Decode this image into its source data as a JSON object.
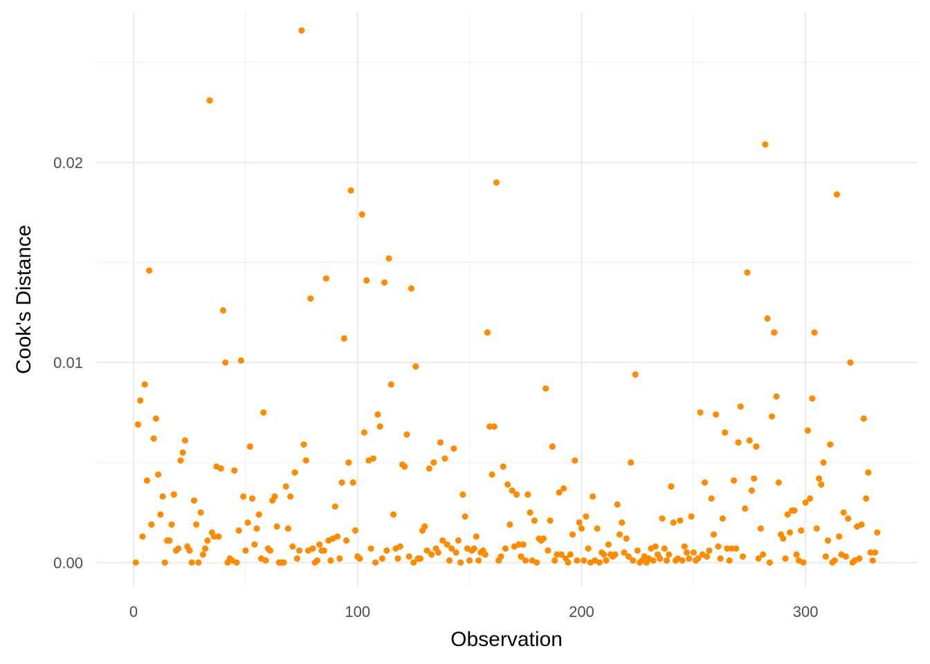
{
  "chart_data": {
    "type": "scatter",
    "title": "",
    "xlabel": "Observation",
    "ylabel": "Cook's Distance",
    "xlim": [
      -17,
      350
    ],
    "ylim": [
      -0.0012,
      0.0275
    ],
    "x_ticks": [
      0,
      100,
      200,
      300
    ],
    "x_tick_labels": [
      "0",
      "100",
      "200",
      "300"
    ],
    "y_ticks": [
      0.0,
      0.01,
      0.02
    ],
    "y_tick_labels": [
      "0.00",
      "0.01",
      "0.02"
    ],
    "grid": true,
    "point_color": "#FF8C00",
    "points": [
      [
        1,
        0.0
      ],
      [
        2,
        0.0069
      ],
      [
        3,
        0.0081
      ],
      [
        4,
        0.0013
      ],
      [
        5,
        0.0089
      ],
      [
        6,
        0.0041
      ],
      [
        7,
        0.0146
      ],
      [
        8,
        0.0019
      ],
      [
        9,
        0.0062
      ],
      [
        10,
        0.0072
      ],
      [
        11,
        0.0044
      ],
      [
        12,
        0.0024
      ],
      [
        13,
        0.0033
      ],
      [
        14,
        0.0
      ],
      [
        15,
        0.0011
      ],
      [
        16,
        0.0011
      ],
      [
        17,
        0.0019
      ],
      [
        18,
        0.0034
      ],
      [
        19,
        0.0006
      ],
      [
        20,
        0.0007
      ],
      [
        21,
        0.0051
      ],
      [
        22,
        0.0055
      ],
      [
        23,
        0.0061
      ],
      [
        24,
        0.0008
      ],
      [
        25,
        0.0006
      ],
      [
        26,
        0.0
      ],
      [
        27,
        0.0031
      ],
      [
        28,
        0.0019
      ],
      [
        29,
        0.0
      ],
      [
        30,
        0.0025
      ],
      [
        31,
        0.0004
      ],
      [
        32,
        0.0007
      ],
      [
        33,
        0.0011
      ],
      [
        34,
        0.0231
      ],
      [
        35,
        0.0015
      ],
      [
        36,
        0.0013
      ],
      [
        37,
        0.0048
      ],
      [
        38,
        0.0013
      ],
      [
        39,
        0.0047
      ],
      [
        40,
        0.0126
      ],
      [
        41,
        0.01
      ],
      [
        42,
        0.0
      ],
      [
        43,
        0.0002
      ],
      [
        44,
        0.0001
      ],
      [
        45,
        0.0046
      ],
      [
        46,
        0.0
      ],
      [
        47,
        0.0016
      ],
      [
        48,
        0.0101
      ],
      [
        49,
        0.0033
      ],
      [
        50,
        0.0006
      ],
      [
        51,
        0.002
      ],
      [
        52,
        0.0058
      ],
      [
        53,
        0.0032
      ],
      [
        54,
        0.0009
      ],
      [
        55,
        0.0017
      ],
      [
        56,
        0.0024
      ],
      [
        57,
        0.0002
      ],
      [
        58,
        0.0075
      ],
      [
        59,
        0.0001
      ],
      [
        60,
        0.0007
      ],
      [
        61,
        0.0006
      ],
      [
        62,
        0.0031
      ],
      [
        63,
        0.0033
      ],
      [
        64,
        0.0018
      ],
      [
        65,
        0.0
      ],
      [
        66,
        0.0
      ],
      [
        67,
        0.0
      ],
      [
        68,
        0.0038
      ],
      [
        69,
        0.0017
      ],
      [
        70,
        0.0033
      ],
      [
        71,
        0.0008
      ],
      [
        72,
        0.0045
      ],
      [
        73,
        0.0002
      ],
      [
        74,
        0.0006
      ],
      [
        75,
        0.0266
      ],
      [
        76,
        0.0059
      ],
      [
        77,
        0.0051
      ],
      [
        78,
        0.0006
      ],
      [
        79,
        0.0132
      ],
      [
        80,
        0.0007
      ],
      [
        81,
        0.0
      ],
      [
        82,
        0.0001
      ],
      [
        83,
        0.0009
      ],
      [
        84,
        0.0006
      ],
      [
        85,
        0.0006
      ],
      [
        86,
        0.0142
      ],
      [
        87,
        0.0011
      ],
      [
        88,
        0.0001
      ],
      [
        89,
        0.0012
      ],
      [
        90,
        0.0028
      ],
      [
        91,
        0.0013
      ],
      [
        92,
        0.0002
      ],
      [
        93,
        0.004
      ],
      [
        94,
        0.0112
      ],
      [
        95,
        0.0011
      ],
      [
        96,
        0.005
      ],
      [
        97,
        0.0186
      ],
      [
        98,
        0.004
      ],
      [
        99,
        0.0016
      ],
      [
        100,
        0.0003
      ],
      [
        101,
        0.0002
      ],
      [
        102,
        0.0174
      ],
      [
        103,
        0.0065
      ],
      [
        104,
        0.0141
      ],
      [
        105,
        0.0051
      ],
      [
        106,
        0.0007
      ],
      [
        107,
        0.0052
      ],
      [
        108,
        0.0
      ],
      [
        109,
        0.0074
      ],
      [
        110,
        0.0068
      ],
      [
        111,
        0.0002
      ],
      [
        112,
        0.014
      ],
      [
        113,
        0.0006
      ],
      [
        114,
        0.0152
      ],
      [
        115,
        0.0089
      ],
      [
        116,
        0.0024
      ],
      [
        117,
        0.0007
      ],
      [
        118,
        0.0002
      ],
      [
        119,
        0.0008
      ],
      [
        120,
        0.0049
      ],
      [
        121,
        0.0048
      ],
      [
        122,
        0.0064
      ],
      [
        123,
        0.0003
      ],
      [
        124,
        0.0137
      ],
      [
        125,
        0.0
      ],
      [
        126,
        0.0098
      ],
      [
        127,
        0.0002
      ],
      [
        128,
        0.0002
      ],
      [
        129,
        0.0016
      ],
      [
        130,
        0.0018
      ],
      [
        131,
        0.0006
      ],
      [
        132,
        0.0047
      ],
      [
        133,
        0.0004
      ],
      [
        134,
        0.005
      ],
      [
        135,
        0.0007
      ],
      [
        136,
        0.0005
      ],
      [
        137,
        0.006
      ],
      [
        138,
        0.0011
      ],
      [
        139,
        0.0052
      ],
      [
        140,
        0.0009
      ],
      [
        141,
        0.0001
      ],
      [
        142,
        0.0007
      ],
      [
        143,
        0.0057
      ],
      [
        144,
        0.0005
      ],
      [
        145,
        0.0011
      ],
      [
        146,
        0.0
      ],
      [
        147,
        0.0034
      ],
      [
        148,
        0.0023
      ],
      [
        149,
        0.0007
      ],
      [
        150,
        0.0001
      ],
      [
        151,
        0.0006
      ],
      [
        152,
        0.0007
      ],
      [
        153,
        0.0013
      ],
      [
        154,
        0.0001
      ],
      [
        155,
        0.0005
      ],
      [
        156,
        0.0006
      ],
      [
        157,
        0.0004
      ],
      [
        158,
        0.0115
      ],
      [
        159,
        0.0068
      ],
      [
        160,
        0.0044
      ],
      [
        161,
        0.0068
      ],
      [
        162,
        0.019
      ],
      [
        163,
        0.0001
      ],
      [
        164,
        0.0003
      ],
      [
        165,
        0.0048
      ],
      [
        166,
        0.0007
      ],
      [
        167,
        0.0039
      ],
      [
        168,
        0.0019
      ],
      [
        169,
        0.0036
      ],
      [
        170,
        0.0008
      ],
      [
        171,
        0.0034
      ],
      [
        172,
        0.0009
      ],
      [
        173,
        0.0003
      ],
      [
        174,
        0.0009
      ],
      [
        175,
        0.0001
      ],
      [
        176,
        0.0034
      ],
      [
        177,
        0.0025
      ],
      [
        178,
        0.0001
      ],
      [
        179,
        0.0021
      ],
      [
        180,
        0.0
      ],
      [
        181,
        0.0012
      ],
      [
        182,
        0.0011
      ],
      [
        183,
        0.0012
      ],
      [
        184,
        0.0087
      ],
      [
        185,
        0.0006
      ],
      [
        186,
        0.0021
      ],
      [
        187,
        0.0058
      ],
      [
        188,
        0.0001
      ],
      [
        189,
        0.0004
      ],
      [
        190,
        0.0035
      ],
      [
        191,
        0.0004
      ],
      [
        192,
        0.0037
      ],
      [
        193,
        0.0002
      ],
      [
        194,
        0.0
      ],
      [
        195,
        0.0004
      ],
      [
        196,
        0.0014
      ],
      [
        197,
        0.0051
      ],
      [
        198,
        0.0001
      ],
      [
        199,
        0.002
      ],
      [
        200,
        0.0017
      ],
      [
        201,
        0.0001
      ],
      [
        202,
        0.0023
      ],
      [
        203,
        0.0007
      ],
      [
        204,
        0.0
      ],
      [
        205,
        0.0033
      ],
      [
        206,
        0.0001
      ],
      [
        207,
        0.0017
      ],
      [
        208,
        0.0
      ],
      [
        209,
        0.0005
      ],
      [
        210,
        0.0004
      ],
      [
        211,
        0.0001
      ],
      [
        212,
        0.0009
      ],
      [
        213,
        0.0004
      ],
      [
        214,
        0.0003
      ],
      [
        215,
        0.0004
      ],
      [
        216,
        0.0029
      ],
      [
        217,
        0.0014
      ],
      [
        218,
        0.002
      ],
      [
        219,
        0.0005
      ],
      [
        220,
        0.0012
      ],
      [
        221,
        0.0003
      ],
      [
        222,
        0.005
      ],
      [
        223,
        0.0001
      ],
      [
        224,
        0.0094
      ],
      [
        225,
        0.0006
      ],
      [
        226,
        0.0
      ],
      [
        227,
        0.0001
      ],
      [
        228,
        0.0003
      ],
      [
        229,
        0.0
      ],
      [
        230,
        0.0002
      ],
      [
        231,
        0.0007
      ],
      [
        232,
        0.0001
      ],
      [
        233,
        0.0008
      ],
      [
        234,
        0.0004
      ],
      [
        235,
        0.0002
      ],
      [
        236,
        0.0022
      ],
      [
        237,
        0.0007
      ],
      [
        238,
        0.0001
      ],
      [
        239,
        0.0004
      ],
      [
        240,
        0.0038
      ],
      [
        241,
        0.002
      ],
      [
        242,
        0.0001
      ],
      [
        243,
        0.0002
      ],
      [
        244,
        0.0021
      ],
      [
        245,
        0.0001
      ],
      [
        246,
        0.0008
      ],
      [
        247,
        0.0005
      ],
      [
        248,
        0.0002
      ],
      [
        249,
        0.0023
      ],
      [
        250,
        0.0005
      ],
      [
        251,
        0.0001
      ],
      [
        252,
        0.0002
      ],
      [
        253,
        0.0075
      ],
      [
        254,
        0.0004
      ],
      [
        255,
        0.004
      ],
      [
        256,
        0.0003
      ],
      [
        257,
        0.0006
      ],
      [
        258,
        0.0032
      ],
      [
        259,
        0.0014
      ],
      [
        260,
        0.0074
      ],
      [
        261,
        0.0008
      ],
      [
        262,
        0.0002
      ],
      [
        263,
        0.0022
      ],
      [
        264,
        0.0065
      ],
      [
        265,
        0.0007
      ],
      [
        266,
        0.0001
      ],
      [
        267,
        0.0007
      ],
      [
        268,
        0.0041
      ],
      [
        269,
        0.0007
      ],
      [
        270,
        0.006
      ],
      [
        271,
        0.0078
      ],
      [
        272,
        0.0003
      ],
      [
        273,
        0.0027
      ],
      [
        274,
        0.0145
      ],
      [
        275,
        0.0061
      ],
      [
        276,
        0.0036
      ],
      [
        277,
        0.0042
      ],
      [
        278,
        0.0058
      ],
      [
        279,
        0.0002
      ],
      [
        280,
        0.0017
      ],
      [
        281,
        0.0004
      ],
      [
        282,
        0.0209
      ],
      [
        283,
        0.0122
      ],
      [
        284,
        0.0
      ],
      [
        285,
        0.0073
      ],
      [
        286,
        0.0115
      ],
      [
        287,
        0.0083
      ],
      [
        288,
        0.004
      ],
      [
        289,
        0.0014
      ],
      [
        290,
        0.0012
      ],
      [
        291,
        0.0002
      ],
      [
        292,
        0.0024
      ],
      [
        293,
        0.0015
      ],
      [
        294,
        0.0026
      ],
      [
        295,
        0.0026
      ],
      [
        296,
        0.0004
      ],
      [
        297,
        0.0001
      ],
      [
        298,
        0.0016
      ],
      [
        299,
        0.0
      ],
      [
        300,
        0.003
      ],
      [
        301,
        0.0066
      ],
      [
        302,
        0.0032
      ],
      [
        303,
        0.0082
      ],
      [
        304,
        0.0115
      ],
      [
        305,
        0.0017
      ],
      [
        306,
        0.0042
      ],
      [
        307,
        0.0039
      ],
      [
        308,
        0.005
      ],
      [
        309,
        0.0003
      ],
      [
        310,
        0.0011
      ],
      [
        311,
        0.0059
      ],
      [
        312,
        0.0
      ],
      [
        313,
        0.0001
      ],
      [
        314,
        0.0184
      ],
      [
        315,
        0.0013
      ],
      [
        316,
        0.0004
      ],
      [
        317,
        0.0025
      ],
      [
        318,
        0.0003
      ],
      [
        319,
        0.0022
      ],
      [
        320,
        0.01
      ],
      [
        321,
        0.0
      ],
      [
        322,
        0.0001
      ],
      [
        323,
        0.0018
      ],
      [
        324,
        0.0002
      ],
      [
        325,
        0.0019
      ],
      [
        326,
        0.0072
      ],
      [
        327,
        0.0032
      ],
      [
        328,
        0.0045
      ],
      [
        329,
        0.0005
      ],
      [
        330,
        0.0001
      ],
      [
        331,
        0.0005
      ],
      [
        332,
        0.0015
      ]
    ]
  }
}
